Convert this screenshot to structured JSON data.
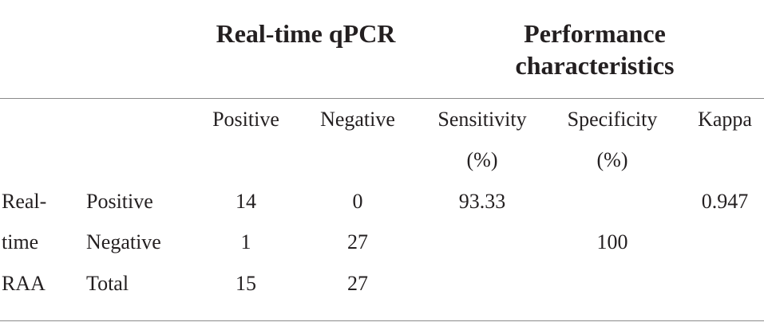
{
  "table": {
    "group_headers": {
      "reference": "Real-time qPCR",
      "performance_line1": "Performance",
      "performance_line2": "characteristics"
    },
    "column_headers": {
      "positive": "Positive",
      "negative": "Negative",
      "sensitivity_line1": "Sensitivity",
      "sensitivity_line2": "(%)",
      "specificity_line1": "Specificity",
      "specificity_line2": "(%)",
      "kappa": "Kappa"
    },
    "stub": {
      "line1": "Real-",
      "line2": "time",
      "line3": "RAA"
    },
    "rows": [
      {
        "label": "Positive",
        "positive": "14",
        "negative": "0",
        "sensitivity": "93.33",
        "specificity": "",
        "kappa": "0.947"
      },
      {
        "label": "Negative",
        "positive": "1",
        "negative": "27",
        "sensitivity": "",
        "specificity": "100",
        "kappa": ""
      },
      {
        "label": "Total",
        "positive": "15",
        "negative": "27",
        "sensitivity": "",
        "specificity": "",
        "kappa": ""
      }
    ]
  }
}
